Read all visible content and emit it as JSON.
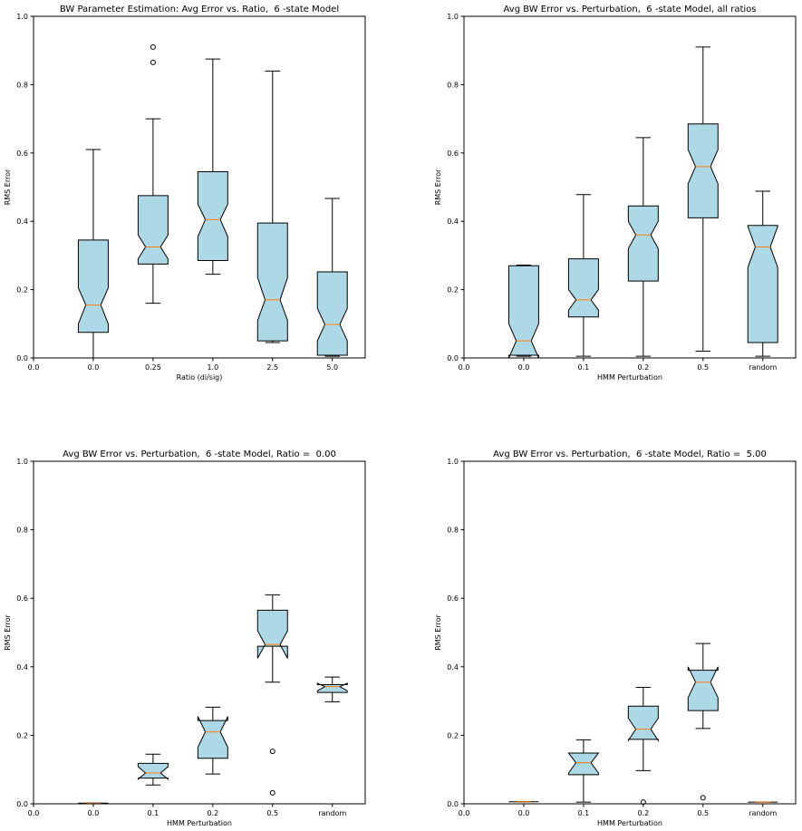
{
  "chart_data": [
    {
      "type": "box",
      "title": "BW Parameter Estimation: Avg Error vs. Ratio,  6 -state Model",
      "xlabel": "Ratio (di/sig)",
      "ylabel": "RMS Error",
      "xlim": [
        0,
        5.55
      ],
      "xticks": [
        {
          "value": 0,
          "label": "0.0"
        },
        {
          "value": 1,
          "label": "0.0"
        },
        {
          "value": 2,
          "label": "0.25"
        },
        {
          "value": 3,
          "label": "1.0"
        },
        {
          "value": 4,
          "label": "2.5"
        },
        {
          "value": 5,
          "label": "5.0"
        }
      ],
      "ylim": [
        0,
        1
      ],
      "yticks": [
        {
          "value": 0,
          "label": "0.0"
        },
        {
          "value": 0.2,
          "label": "0.2"
        },
        {
          "value": 0.4,
          "label": "0.4"
        },
        {
          "value": 0.6,
          "label": "0.6"
        },
        {
          "value": 0.8,
          "label": "0.8"
        },
        {
          "value": 1,
          "label": "1.0"
        }
      ],
      "color": "#add8e6",
      "median_color": "#ff7f0e",
      "boxes": [
        {
          "x": 1,
          "whisker_low": 0,
          "q1": 0.075,
          "notch_low": 0.1,
          "median": 0.155,
          "notch_high": 0.205,
          "q3": 0.345,
          "whisker_high": 0.61,
          "outliers": []
        },
        {
          "x": 2,
          "whisker_low": 0.16,
          "q1": 0.275,
          "notch_low": 0.29,
          "median": 0.325,
          "notch_high": 0.36,
          "q3": 0.475,
          "whisker_high": 0.7,
          "outliers": [
            0.91,
            0.865
          ]
        },
        {
          "x": 3,
          "whisker_low": 0.245,
          "q1": 0.285,
          "notch_low": 0.355,
          "median": 0.405,
          "notch_high": 0.45,
          "q3": 0.545,
          "whisker_high": 0.875,
          "outliers": []
        },
        {
          "x": 4,
          "whisker_low": 0.045,
          "q1": 0.05,
          "notch_low": 0.11,
          "median": 0.17,
          "notch_high": 0.235,
          "q3": 0.395,
          "whisker_high": 0.84,
          "outliers": []
        },
        {
          "x": 5,
          "whisker_low": 0.005,
          "q1": 0.008,
          "notch_low": 0.05,
          "median": 0.098,
          "notch_high": 0.145,
          "q3": 0.252,
          "whisker_high": 0.467,
          "outliers": []
        }
      ]
    },
    {
      "type": "box",
      "title": "Avg BW Error vs. Perturbation,  6 -state Model, all ratios",
      "xlabel": "HMM Perturbation",
      "ylabel": "RMS Error",
      "xlim": [
        0,
        5.55
      ],
      "xticks": [
        {
          "value": 0,
          "label": "0.0"
        },
        {
          "value": 1,
          "label": "0.0"
        },
        {
          "value": 2,
          "label": "0.1"
        },
        {
          "value": 3,
          "label": "0.2"
        },
        {
          "value": 4,
          "label": "0.5"
        },
        {
          "value": 5,
          "label": "random"
        }
      ],
      "ylim": [
        0,
        1
      ],
      "yticks": [
        {
          "value": 0,
          "label": "0.0"
        },
        {
          "value": 0.2,
          "label": "0.2"
        },
        {
          "value": 0.4,
          "label": "0.4"
        },
        {
          "value": 0.6,
          "label": "0.6"
        },
        {
          "value": 0.8,
          "label": "0.8"
        },
        {
          "value": 1,
          "label": "1.0"
        }
      ],
      "color": "#add8e6",
      "median_color": "#ff7f0e",
      "boxes": [
        {
          "x": 1,
          "whisker_low": 0.005,
          "q1": 0.008,
          "notch_low": 0.0,
          "median": 0.05,
          "notch_high": 0.1,
          "q3": 0.27,
          "whisker_high": 0.272,
          "outliers": []
        },
        {
          "x": 2,
          "whisker_low": 0.005,
          "q1": 0.12,
          "notch_low": 0.14,
          "median": 0.17,
          "notch_high": 0.2,
          "q3": 0.29,
          "whisker_high": 0.478,
          "outliers": []
        },
        {
          "x": 3,
          "whisker_low": 0.005,
          "q1": 0.225,
          "notch_low": 0.32,
          "median": 0.36,
          "notch_high": 0.4,
          "q3": 0.445,
          "whisker_high": 0.645,
          "outliers": []
        },
        {
          "x": 4,
          "whisker_low": 0.02,
          "q1": 0.41,
          "notch_low": 0.51,
          "median": 0.56,
          "notch_high": 0.61,
          "q3": 0.685,
          "whisker_high": 0.91,
          "outliers": []
        },
        {
          "x": 5,
          "whisker_low": 0.005,
          "q1": 0.045,
          "notch_low": 0.265,
          "median": 0.325,
          "notch_high": 0.385,
          "q3": 0.388,
          "whisker_high": 0.488,
          "outliers": []
        }
      ]
    },
    {
      "type": "box",
      "title": "Avg BW Error vs. Perturbation,  6 -state Model, Ratio =  0.00",
      "xlabel": "HMM Perturbation",
      "ylabel": "RMS Error",
      "xlim": [
        0,
        5.55
      ],
      "xticks": [
        {
          "value": 0,
          "label": "0.0"
        },
        {
          "value": 1,
          "label": "0.0"
        },
        {
          "value": 2,
          "label": "0.1"
        },
        {
          "value": 3,
          "label": "0.2"
        },
        {
          "value": 4,
          "label": "0.5"
        },
        {
          "value": 5,
          "label": "random"
        }
      ],
      "ylim": [
        0,
        1
      ],
      "yticks": [
        {
          "value": 0,
          "label": "0.0"
        },
        {
          "value": 0.2,
          "label": "0.2"
        },
        {
          "value": 0.4,
          "label": "0.4"
        },
        {
          "value": 0.6,
          "label": "0.6"
        },
        {
          "value": 0.8,
          "label": "0.8"
        },
        {
          "value": 1,
          "label": "1.0"
        }
      ],
      "color": "#add8e6",
      "median_color": "#ff7f0e",
      "boxes": [
        {
          "x": 1,
          "whisker_low": 0.002,
          "q1": 0.002,
          "notch_low": 0.002,
          "median": 0.002,
          "notch_high": 0.002,
          "q3": 0.002,
          "whisker_high": 0.002,
          "outliers": []
        },
        {
          "x": 2,
          "whisker_low": 0.055,
          "q1": 0.075,
          "notch_low": 0.072,
          "median": 0.09,
          "notch_high": 0.108,
          "q3": 0.118,
          "whisker_high": 0.145,
          "outliers": []
        },
        {
          "x": 3,
          "whisker_low": 0.087,
          "q1": 0.133,
          "notch_low": 0.165,
          "median": 0.21,
          "notch_high": 0.255,
          "q3": 0.243,
          "whisker_high": 0.282,
          "outliers": []
        },
        {
          "x": 4,
          "whisker_low": 0.355,
          "q1": 0.46,
          "notch_low": 0.425,
          "median": 0.465,
          "notch_high": 0.505,
          "q3": 0.565,
          "whisker_high": 0.61,
          "outliers": [
            0.153,
            0.032
          ]
        },
        {
          "x": 5,
          "whisker_low": 0.298,
          "q1": 0.325,
          "notch_low": 0.33,
          "median": 0.342,
          "notch_high": 0.352,
          "q3": 0.348,
          "whisker_high": 0.37,
          "outliers": []
        }
      ]
    },
    {
      "type": "box",
      "title": "Avg BW Error vs. Perturbation,  6 -state Model, Ratio =  5.00",
      "xlabel": "HMM Perturbation",
      "ylabel": "RMS Error",
      "xlim": [
        0,
        5.55
      ],
      "xticks": [
        {
          "value": 0,
          "label": "0.0"
        },
        {
          "value": 1,
          "label": "0.0"
        },
        {
          "value": 2,
          "label": "0.1"
        },
        {
          "value": 3,
          "label": "0.2"
        },
        {
          "value": 4,
          "label": "0.5"
        },
        {
          "value": 5,
          "label": "random"
        }
      ],
      "ylim": [
        0,
        1
      ],
      "yticks": [
        {
          "value": 0,
          "label": "0.0"
        },
        {
          "value": 0.2,
          "label": "0.2"
        },
        {
          "value": 0.4,
          "label": "0.4"
        },
        {
          "value": 0.6,
          "label": "0.6"
        },
        {
          "value": 0.8,
          "label": "0.8"
        },
        {
          "value": 1,
          "label": "1.0"
        }
      ],
      "color": "#add8e6",
      "median_color": "#ff7f0e",
      "boxes": [
        {
          "x": 1,
          "whisker_low": 0.006,
          "q1": 0.006,
          "notch_low": 0.006,
          "median": 0.006,
          "notch_high": 0.006,
          "q3": 0.006,
          "whisker_high": 0.006,
          "outliers": []
        },
        {
          "x": 2,
          "whisker_low": 0.005,
          "q1": 0.085,
          "notch_low": 0.09,
          "median": 0.12,
          "notch_high": 0.148,
          "q3": 0.148,
          "whisker_high": 0.187,
          "outliers": []
        },
        {
          "x": 3,
          "whisker_low": 0.097,
          "q1": 0.188,
          "notch_low": 0.185,
          "median": 0.218,
          "notch_high": 0.25,
          "q3": 0.285,
          "whisker_high": 0.34,
          "outliers": [
            0.005
          ]
        },
        {
          "x": 4,
          "whisker_low": 0.22,
          "q1": 0.272,
          "notch_low": 0.31,
          "median": 0.355,
          "notch_high": 0.4,
          "q3": 0.39,
          "whisker_high": 0.468,
          "outliers": [
            0.018
          ]
        },
        {
          "x": 5,
          "whisker_low": 0.005,
          "q1": 0.005,
          "notch_low": 0.005,
          "median": 0.005,
          "notch_high": 0.005,
          "q3": 0.005,
          "whisker_high": 0.005,
          "outliers": []
        }
      ]
    }
  ]
}
